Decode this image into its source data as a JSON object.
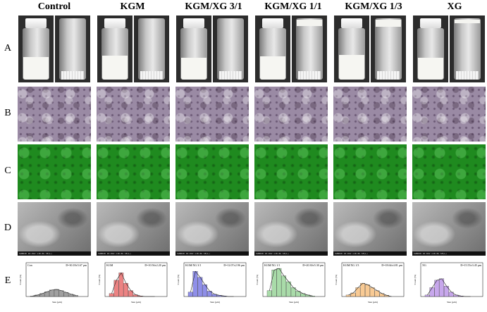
{
  "columns": [
    {
      "title": "Control"
    },
    {
      "title": "KGM"
    },
    {
      "title": "KGM/XG 3/1"
    },
    {
      "title": "KGM/XG 1/1"
    },
    {
      "title": "KGM/XG 1/3"
    },
    {
      "title": "XG"
    }
  ],
  "rows": [
    "A",
    "B",
    "C",
    "D",
    "E"
  ],
  "vials": [
    {
      "left_fill": 0.24,
      "right_fill": 0.0
    },
    {
      "left_fill": 0.26,
      "right_fill": 0.0
    },
    {
      "left_fill": 0.22,
      "right_fill": 0.0
    },
    {
      "left_fill": 0.25,
      "right_fill": 0.1
    },
    {
      "left_fill": 0.28,
      "right_fill": 0.12
    },
    {
      "left_fill": 0.22,
      "right_fill": 0.06
    }
  ],
  "sem_caption": "SU8020 10.0kV x10.0k SE(L)",
  "chart_data": [
    {
      "type": "bar",
      "label": "Con",
      "diameter": "D=30.18±5.67 μm",
      "xlabel": "Size (μm)",
      "ylabel": "Count (%)",
      "color": "#808080",
      "values": [
        0.02,
        0.05,
        0.1,
        0.16,
        0.22,
        0.24,
        0.2,
        0.14,
        0.08,
        0.04
      ]
    },
    {
      "type": "bar",
      "label": "KGM",
      "diameter": "D=10.56±2.20 μm",
      "xlabel": "Size (μm)",
      "ylabel": "Count (%)",
      "color": "#e65a5a",
      "values": [
        0.1,
        0.55,
        0.8,
        0.45,
        0.2,
        0.06,
        0.02,
        0,
        0,
        0
      ]
    },
    {
      "type": "bar",
      "label": "KGM/XG 3/1",
      "diameter": "D=12.07±2.96 μm",
      "xlabel": "Size (μm)",
      "ylabel": "Count (%)",
      "color": "#6a6ae0",
      "values": [
        0.15,
        0.85,
        0.65,
        0.4,
        0.18,
        0.08,
        0.04,
        0.02,
        0,
        0
      ]
    },
    {
      "type": "bar",
      "label": "KGM/XG 1/1",
      "diameter": "D=20.30±5.30 μm",
      "xlabel": "Size (μm)",
      "ylabel": "Count (%)",
      "color": "#8ccf8c",
      "values": [
        0.2,
        0.9,
        0.95,
        0.7,
        0.5,
        0.3,
        0.18,
        0.1,
        0.05,
        0.02
      ]
    },
    {
      "type": "bar",
      "label": "KGM/XG 1/3",
      "diameter": "D=18.64±4.81 μm",
      "xlabel": "Size (μm)",
      "ylabel": "Count (%)",
      "color": "#f5b870",
      "values": [
        0.05,
        0.12,
        0.3,
        0.45,
        0.4,
        0.3,
        0.2,
        0.1,
        0.04,
        0
      ]
    },
    {
      "type": "bar",
      "label": "XG",
      "diameter": "D=15.55±3.45 μm",
      "xlabel": "Size (μm)",
      "ylabel": "Count (%)",
      "color": "#b48ae6",
      "values": [
        0.05,
        0.3,
        0.55,
        0.6,
        0.35,
        0.15,
        0.05,
        0.02,
        0,
        0
      ]
    }
  ]
}
